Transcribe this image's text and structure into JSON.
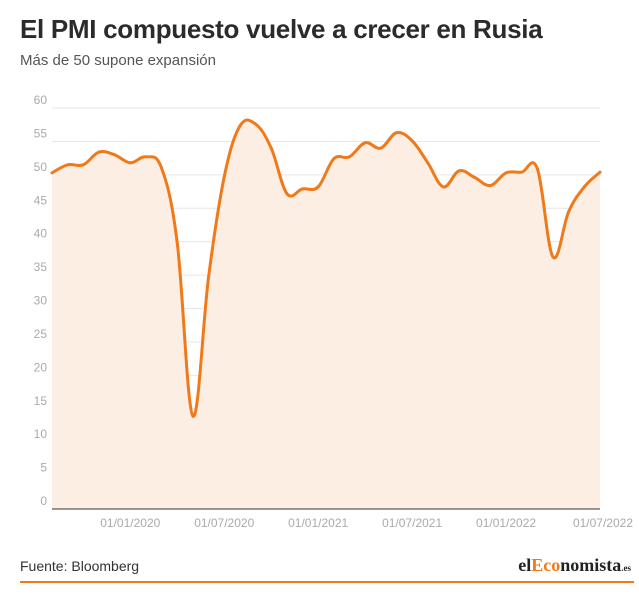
{
  "header": {
    "title": "El PMI compuesto vuelve a crecer en Rusia",
    "subtitle": "Más de 50 supone expansión"
  },
  "footer": {
    "source": "Fuente: Bloomberg",
    "logo": {
      "prefix": "el",
      "highlight": "Eco",
      "rest": "nomista",
      "suffix": ".es"
    }
  },
  "colors": {
    "line": "#f07a1a",
    "fill": "#fdeee4",
    "accent": "#f07a1a"
  },
  "chart_data": {
    "type": "area",
    "title": "El PMI compuesto vuelve a crecer en Rusia",
    "subtitle": "Más de 50 supone expansión",
    "xlabel": "",
    "ylabel": "",
    "ylim": [
      0,
      60
    ],
    "yticks": [
      0,
      5,
      10,
      15,
      20,
      25,
      30,
      35,
      40,
      45,
      50,
      55,
      60
    ],
    "xticks": [
      "01/01/2020",
      "01/07/2020",
      "01/01/2021",
      "01/07/2021",
      "01/01/2022",
      "01/07/2022"
    ],
    "grid": true,
    "legend": "none",
    "x": [
      "2019-08",
      "2019-09",
      "2019-10",
      "2019-11",
      "2019-12",
      "2020-01",
      "2020-02",
      "2020-03",
      "2020-04",
      "2020-05",
      "2020-06",
      "2020-07",
      "2020-08",
      "2020-09",
      "2020-10",
      "2020-11",
      "2020-12",
      "2021-01",
      "2021-02",
      "2021-03",
      "2021-04",
      "2021-05",
      "2021-06",
      "2021-07",
      "2021-08",
      "2021-09",
      "2021-10",
      "2021-11",
      "2021-12",
      "2022-01",
      "2022-02",
      "2022-03",
      "2022-04",
      "2022-05",
      "2022-06",
      "2022-07"
    ],
    "values": [
      50.3,
      51.5,
      51.5,
      53.4,
      53.0,
      51.8,
      52.7,
      51.0,
      39.8,
      13.9,
      34.7,
      49.7,
      57.3,
      57.6,
      54.0,
      47.2,
      47.9,
      48.2,
      52.4,
      52.7,
      54.8,
      54.0,
      56.3,
      55.1,
      51.8,
      48.2,
      50.6,
      49.6,
      48.4,
      50.3,
      50.4,
      50.9,
      37.7,
      44.5,
      48.2,
      50.4
    ]
  }
}
